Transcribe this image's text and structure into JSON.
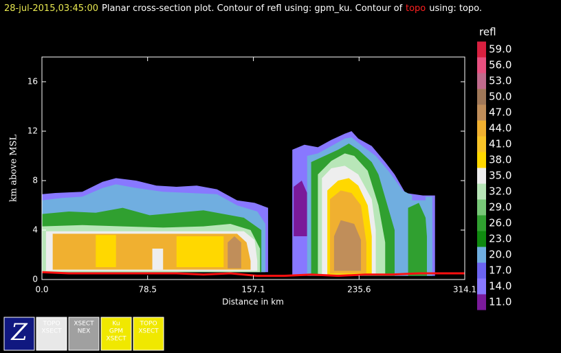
{
  "chart_data": {
    "type": "contour",
    "title_parts": [
      {
        "text": "28-jul-2015,03:45:00",
        "color": "#e8e850"
      },
      {
        "text": "Planar cross-section plot.  Contour of refl using: gpm_ku.  Contour of",
        "color": "#ffffff"
      },
      {
        "text": "topo",
        "color": "#ff2020"
      },
      {
        "text": "using: topo.",
        "color": "#ffffff"
      }
    ],
    "xlabel": "Distance in km",
    "ylabel": "km above MSL",
    "xlim": [
      0,
      314.1
    ],
    "ylim": [
      0,
      18
    ],
    "xticks": [
      {
        "value": 0,
        "label": "0.0"
      },
      {
        "value": 78.5,
        "label": "78.5"
      },
      {
        "value": 157.1,
        "label": "157.1"
      },
      {
        "value": 235.6,
        "label": "235.6"
      },
      {
        "value": 314.1,
        "label": "314.1"
      }
    ],
    "yticks": [
      0,
      4,
      8,
      12,
      16
    ],
    "colorbar": {
      "title": "refl",
      "levels": [
        {
          "value": 59,
          "label": "59.0",
          "color": "#d82040"
        },
        {
          "value": 56,
          "label": "56.0",
          "color": "#e85080"
        },
        {
          "value": 53,
          "label": "53.0",
          "color": "#c06a8c"
        },
        {
          "value": 50,
          "label": "50.0",
          "color": "#a07858"
        },
        {
          "value": 47,
          "label": "47.0",
          "color": "#c08e5a"
        },
        {
          "value": 44,
          "label": "44.0",
          "color": "#f0b030"
        },
        {
          "value": 41,
          "label": "41.0",
          "color": "#f8c428"
        },
        {
          "value": 38,
          "label": "38.0",
          "color": "#ffd800"
        },
        {
          "value": 35,
          "label": "35.0",
          "color": "#eeeeee"
        },
        {
          "value": 32,
          "label": "32.0",
          "color": "#b8e6b8"
        },
        {
          "value": 29,
          "label": "29.0",
          "color": "#78c878"
        },
        {
          "value": 26,
          "label": "26.0",
          "color": "#30a030"
        },
        {
          "value": 23,
          "label": "23.0",
          "color": "#108a10"
        },
        {
          "value": 20,
          "label": "20.0",
          "color": "#70aee0"
        },
        {
          "value": 17,
          "label": "17.0",
          "color": "#6c64f0"
        },
        {
          "value": 14,
          "label": "14.0",
          "color": "#8878ff"
        },
        {
          "value": 11,
          "label": "11.0",
          "color": "#7a1a9a"
        }
      ]
    },
    "regions": [
      {
        "level": 14,
        "x": [
          0,
          0,
          10,
          30,
          45,
          55,
          70,
          85,
          100,
          115,
          130,
          145,
          158,
          168,
          168
        ],
        "y": [
          0.6,
          6.9,
          7.0,
          7.1,
          7.9,
          8.2,
          8.0,
          7.6,
          7.5,
          7.6,
          7.3,
          6.4,
          6.2,
          5.8,
          0.6
        ]
      },
      {
        "level": 20,
        "x": [
          0,
          0,
          15,
          30,
          45,
          55,
          70,
          90,
          110,
          130,
          145,
          160,
          166,
          166
        ],
        "y": [
          0.6,
          6.4,
          6.6,
          6.7,
          7.4,
          7.7,
          7.4,
          7.1,
          7.0,
          6.9,
          6.0,
          5.5,
          4.5,
          0.6
        ]
      },
      {
        "level": 26,
        "x": [
          0,
          0,
          20,
          40,
          60,
          80,
          100,
          120,
          135,
          150,
          163,
          163
        ],
        "y": [
          0.6,
          5.3,
          5.5,
          5.4,
          5.8,
          5.2,
          5.4,
          5.6,
          5.3,
          5.0,
          4.0,
          0.6
        ]
      },
      {
        "level": 32,
        "x": [
          0,
          0,
          30,
          60,
          90,
          120,
          140,
          155,
          162,
          162
        ],
        "y": [
          0.6,
          4.3,
          4.4,
          4.3,
          4.2,
          4.3,
          4.5,
          4.0,
          2.5,
          0.6
        ]
      },
      {
        "level": 35,
        "x": [
          3,
          3,
          150,
          158,
          160,
          160
        ],
        "y": [
          0.7,
          3.9,
          3.9,
          3.2,
          1.5,
          0.7
        ]
      },
      {
        "level": 44,
        "x": [
          8,
          8,
          145,
          152,
          155,
          155
        ],
        "y": [
          0.8,
          3.7,
          3.7,
          3.0,
          1.5,
          0.8
        ]
      },
      {
        "level": 38,
        "x": [
          40,
          40,
          55,
          55
        ],
        "y": [
          1.0,
          3.6,
          3.6,
          1.0
        ]
      },
      {
        "level": 38,
        "x": [
          100,
          100,
          135,
          135
        ],
        "y": [
          1.0,
          3.5,
          3.5,
          1.0
        ]
      },
      {
        "level": 35,
        "x": [
          82,
          82,
          90,
          90
        ],
        "y": [
          0.8,
          2.5,
          2.5,
          0.8
        ]
      },
      {
        "level": 47,
        "x": [
          138,
          138,
          143,
          148,
          148
        ],
        "y": [
          0.9,
          3.0,
          3.5,
          3.0,
          0.9
        ]
      },
      {
        "level": 14,
        "x": [
          186,
          186,
          195,
          205,
          215,
          225,
          230,
          235,
          245,
          255,
          262,
          270,
          283,
          292,
          292
        ],
        "y": [
          0.3,
          10.5,
          10.9,
          10.7,
          11.3,
          11.8,
          12.0,
          11.4,
          10.8,
          9.5,
          8.5,
          7.0,
          6.8,
          6.8,
          0.3
        ]
      },
      {
        "level": 11,
        "x": [
          187,
          187,
          193,
          197,
          197
        ],
        "y": [
          3.5,
          7.5,
          8.0,
          7.0,
          3.5
        ]
      },
      {
        "level": 20,
        "x": [
          197,
          197,
          205,
          215,
          225,
          230,
          238,
          248,
          258,
          268,
          275,
          275,
          285,
          285,
          290,
          290
        ],
        "y": [
          0.3,
          10.0,
          10.2,
          10.8,
          11.4,
          11.5,
          10.8,
          10.0,
          8.7,
          7.2,
          6.8,
          6.4,
          6.4,
          6.7,
          6.7,
          0.3
        ]
      },
      {
        "level": 26,
        "x": [
          200,
          200,
          210,
          220,
          228,
          235,
          245,
          250,
          262,
          262
        ],
        "y": [
          0.3,
          9.5,
          10.0,
          10.5,
          11.0,
          10.5,
          9.5,
          8.5,
          4.0,
          0.3
        ]
      },
      {
        "level": 26,
        "x": [
          272,
          272,
          280,
          285,
          286,
          286
        ],
        "y": [
          0.3,
          5.8,
          6.2,
          5.0,
          3.5,
          0.3
        ]
      },
      {
        "level": 32,
        "x": [
          205,
          205,
          215,
          225,
          232,
          242,
          250,
          255,
          255
        ],
        "y": [
          0.4,
          8.5,
          9.6,
          10.2,
          10.0,
          8.8,
          6.0,
          3.0,
          0.4
        ]
      },
      {
        "level": 35,
        "x": [
          208,
          208,
          215,
          225,
          235,
          245,
          248,
          248
        ],
        "y": [
          0.4,
          8.2,
          9.0,
          9.2,
          8.5,
          6.5,
          4.0,
          0.4
        ]
      },
      {
        "level": 38,
        "x": [
          212,
          212,
          220,
          228,
          235,
          242,
          245,
          245
        ],
        "y": [
          0.4,
          7.2,
          8.0,
          8.2,
          7.6,
          6.0,
          3.5,
          0.4
        ]
      },
      {
        "level": 44,
        "x": [
          214,
          214,
          222,
          230,
          237,
          241,
          241
        ],
        "y": [
          0.5,
          6.5,
          7.2,
          7.0,
          6.0,
          3.0,
          0.5
        ]
      },
      {
        "level": 47,
        "x": [
          217,
          217,
          222,
          232,
          237,
          237
        ],
        "y": [
          0.7,
          3.5,
          4.8,
          4.5,
          3.2,
          0.7
        ]
      }
    ],
    "topo": {
      "color": "#ff1010",
      "x": [
        0,
        20,
        40,
        60,
        80,
        100,
        120,
        140,
        160,
        180,
        200,
        220,
        240,
        260,
        280,
        300,
        314.1
      ],
      "y": [
        0.6,
        0.5,
        0.5,
        0.5,
        0.5,
        0.5,
        0.4,
        0.5,
        0.3,
        0.3,
        0.4,
        0.3,
        0.4,
        0.4,
        0.5,
        0.5,
        0.5
      ]
    }
  },
  "toolbar": [
    {
      "lines": [
        "Z"
      ]
    },
    {
      "lines": [
        "TOPO",
        "XSECT"
      ]
    },
    {
      "lines": [
        "XSECT",
        "NEX"
      ]
    },
    {
      "lines": [
        "Ku",
        "GPM",
        "XSECT"
      ]
    },
    {
      "lines": [
        "TOPO",
        "XSECT"
      ]
    }
  ]
}
